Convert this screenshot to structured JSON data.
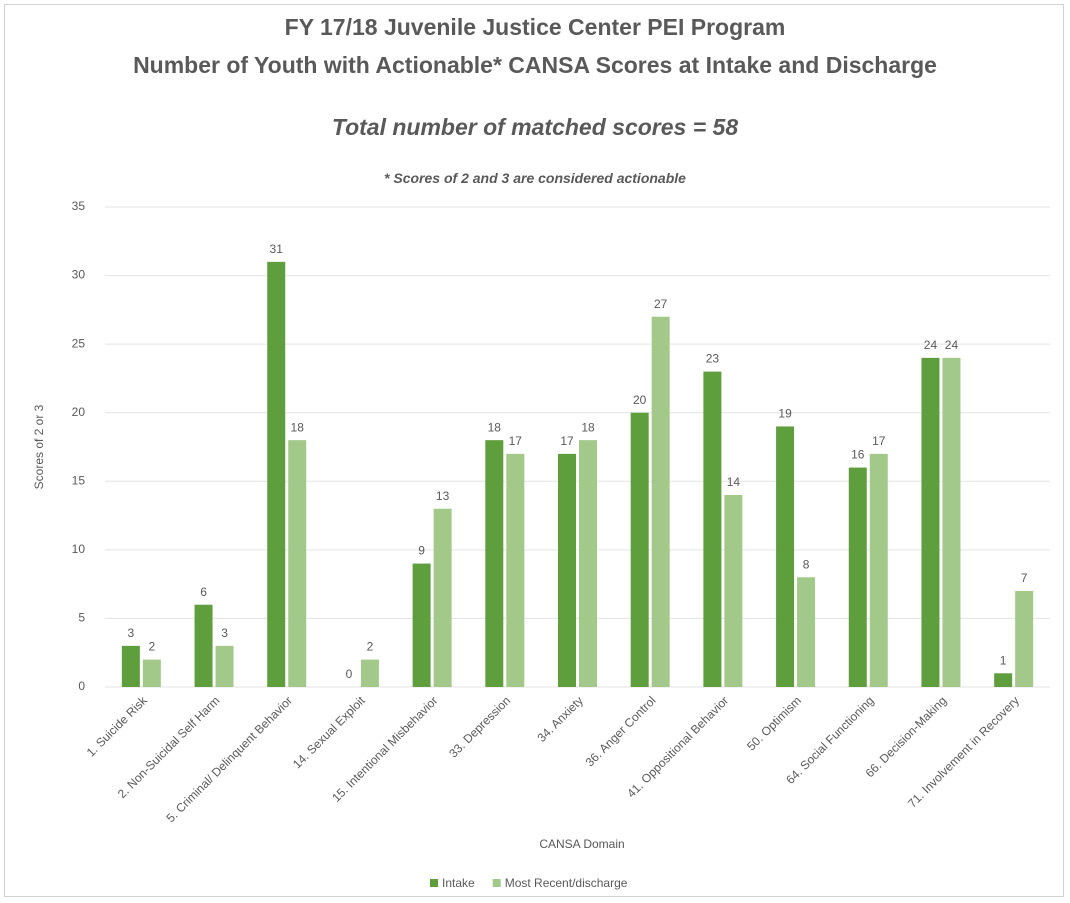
{
  "chart_data": {
    "type": "bar",
    "title": "FY 17/18 Juvenile Justice Center PEI Program",
    "title2": "Number of Youth with Actionable* CANSA Scores at Intake and Discharge",
    "title3": "Total number of matched scores = 58",
    "subtitle": "* Scores of 2 and 3 are considered actionable",
    "x_label": "CANSA Domain",
    "y_label": "Scores of 2 or 3",
    "categories": [
      "1. Suicide Risk",
      "2. Non-Suicidal Self Harm",
      "5. Criminal/ Delinquent Behavior",
      "14. Sexual Exploit",
      "15. Intentional Misbehavior",
      "33. Depression",
      "34. Anxiety",
      "36. Anger Control",
      "41. Oppositional Behavior",
      "50. Optimism",
      "64. Social Functioning",
      "66. Decision-Making",
      "71. Involvement in Recovery"
    ],
    "series": [
      {
        "name": "Intake",
        "color": "#5f9e3d",
        "values": [
          3,
          6,
          31,
          0,
          9,
          18,
          17,
          20,
          23,
          19,
          16,
          24,
          1
        ]
      },
      {
        "name": "Most Recent/discharge",
        "color": "#a2c98a",
        "values": [
          2,
          3,
          18,
          2,
          13,
          17,
          18,
          27,
          14,
          8,
          17,
          24,
          7
        ]
      }
    ],
    "ylim": [
      0,
      35
    ],
    "yticks": [
      0,
      5,
      10,
      15,
      20,
      25,
      30,
      35
    ],
    "grid": true,
    "legend": "bottom"
  }
}
